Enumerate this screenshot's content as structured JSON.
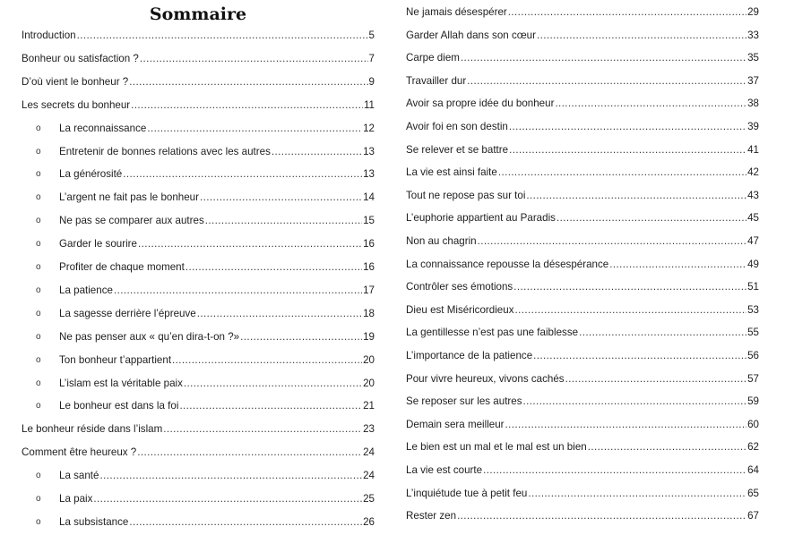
{
  "title": "Sommaire",
  "left": [
    {
      "label": "Introduction",
      "page": "5",
      "sub": false
    },
    {
      "label": "Bonheur ou satisfaction ?",
      "page": "7",
      "sub": false
    },
    {
      "label": "D’où vient le bonheur ?",
      "page": "9",
      "sub": false
    },
    {
      "label": "Les secrets du bonheur",
      "page": "11",
      "sub": false
    },
    {
      "label": "La reconnaissance",
      "page": "12",
      "sub": true
    },
    {
      "label": "Entretenir de bonnes relations avec les autres",
      "page": "13",
      "sub": true
    },
    {
      "label": "La générosité",
      "page": "13",
      "sub": true
    },
    {
      "label": "L’argent ne fait pas le bonheur",
      "page": "14",
      "sub": true
    },
    {
      "label": "Ne pas se comparer aux autres",
      "page": "15",
      "sub": true
    },
    {
      "label": "Garder le sourire",
      "page": "16",
      "sub": true
    },
    {
      "label": "Profiter de chaque moment",
      "page": "16",
      "sub": true
    },
    {
      "label": "La patience",
      "page": "17",
      "sub": true
    },
    {
      "label": "La sagesse derrière l’épreuve",
      "page": "18",
      "sub": true
    },
    {
      "label": "Ne pas penser aux « qu’en dira-t-on ?»",
      "page": "19",
      "sub": true
    },
    {
      "label": "Ton bonheur t’appartient",
      "page": "20",
      "sub": true
    },
    {
      "label": "L’islam est la véritable paix",
      "page": "20",
      "sub": true
    },
    {
      "label": "Le bonheur est dans la foi",
      "page": "21",
      "sub": true
    },
    {
      "label": "Le bonheur réside dans l’islam",
      "page": "23",
      "sub": false
    },
    {
      "label": "Comment être heureux ?",
      "page": "24",
      "sub": false
    },
    {
      "label": "La santé",
      "page": "24",
      "sub": true
    },
    {
      "label": "La paix",
      "page": "25",
      "sub": true
    },
    {
      "label": "La subsistance",
      "page": "26",
      "sub": true
    }
  ],
  "right": [
    {
      "label": "Ne jamais désespérer",
      "page": "29"
    },
    {
      "label": "Garder Allah dans son cœur",
      "page": "33"
    },
    {
      "label": "Carpe diem",
      "page": "35"
    },
    {
      "label": "Travailler dur",
      "page": "37"
    },
    {
      "label": "Avoir sa propre idée du bonheur",
      "page": "38"
    },
    {
      "label": "Avoir foi en son destin",
      "page": "39"
    },
    {
      "label": "Se relever et se battre",
      "page": "41"
    },
    {
      "label": "La vie est ainsi faite",
      "page": "42"
    },
    {
      "label": "Tout ne repose pas sur toi",
      "page": "43"
    },
    {
      "label": "L’euphorie appartient au Paradis",
      "page": "45"
    },
    {
      "label": "Non au chagrin",
      "page": "47"
    },
    {
      "label": "La connaissance repousse la désespérance",
      "page": "49"
    },
    {
      "label": "Contrôler ses émotions",
      "page": "51"
    },
    {
      "label": "Dieu est Miséricordieux",
      "page": "53"
    },
    {
      "label": "La gentillesse n’est pas une faiblesse",
      "page": "55"
    },
    {
      "label": "L’importance de la patience",
      "page": "56"
    },
    {
      "label": "Pour vivre heureux, vivons cachés",
      "page": "57"
    },
    {
      "label": "Se reposer sur les autres",
      "page": "59"
    },
    {
      "label": "Demain sera meilleur",
      "page": "60"
    },
    {
      "label": "Le bien est un mal et le mal est un bien",
      "page": "62"
    },
    {
      "label": "La vie est courte",
      "page": "64"
    },
    {
      "label": "L’inquiétude tue à petit feu",
      "page": "65"
    },
    {
      "label": "Rester zen",
      "page": "67"
    }
  ],
  "bullet_glyph": "o"
}
